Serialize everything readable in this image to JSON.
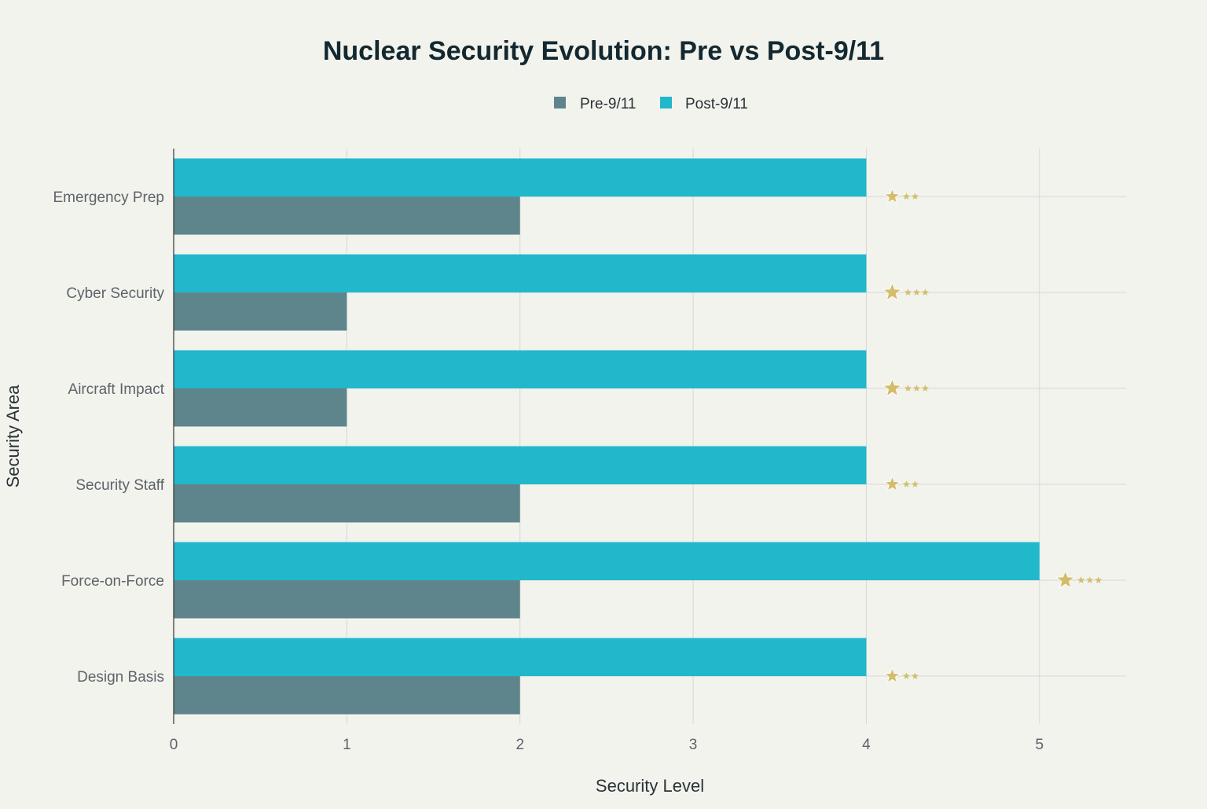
{
  "chart_data": {
    "type": "bar",
    "orientation": "horizontal",
    "title": "Nuclear Security Evolution: Pre vs Post-9/11",
    "xlabel": "Security Level",
    "ylabel": "Security Area",
    "xlim": [
      0,
      5.5
    ],
    "xticks": [
      0,
      1,
      2,
      3,
      4,
      5
    ],
    "xtick_labels": [
      "0",
      "1",
      "2",
      "3",
      "4",
      "5"
    ],
    "grid": true,
    "legend_position": "top-center",
    "categories": [
      "Design Basis",
      "Force-on-Force",
      "Security Staff",
      "Aircraft Impact",
      "Cyber Security",
      "Emergency Prep"
    ],
    "series": [
      {
        "name": "Pre-9/11",
        "color": "#5f858c",
        "values": [
          2,
          2,
          2,
          1,
          1,
          2
        ]
      },
      {
        "name": "Post-9/11",
        "color": "#21b8cc",
        "values": [
          4,
          5,
          4,
          4,
          4,
          4
        ]
      }
    ],
    "annotations": {
      "marker": "star",
      "color": "#d4bd6a",
      "small_star_counts": [
        2,
        3,
        2,
        3,
        3,
        2
      ]
    }
  },
  "colors": {
    "background": "#f3f3ee",
    "title": "#13282f",
    "axis_text": "#5c6468",
    "label_text": "#2a3236",
    "grid": "#d6d8d4",
    "axis_line": "#333333"
  }
}
